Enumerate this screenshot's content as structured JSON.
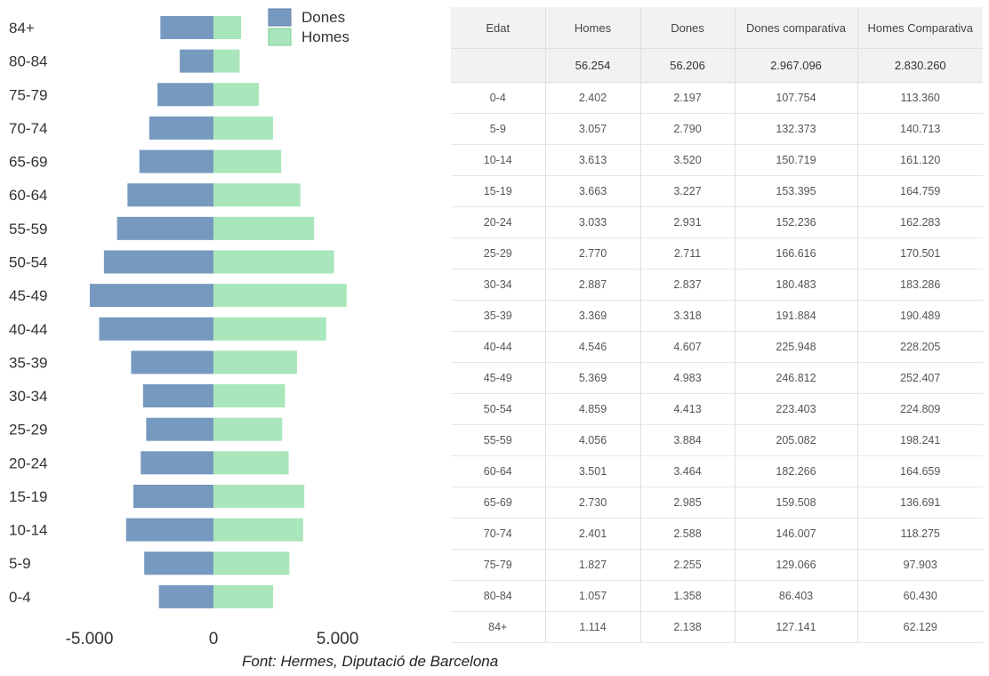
{
  "chart_data": {
    "type": "bar",
    "orientation": "horizontal",
    "categories": [
      "84+",
      "80-84",
      "75-79",
      "70-74",
      "65-69",
      "60-64",
      "55-59",
      "50-54",
      "45-49",
      "40-44",
      "35-39",
      "30-34",
      "25-29",
      "20-24",
      "15-19",
      "10-14",
      "5-9",
      "0-4"
    ],
    "series": [
      {
        "name": "Dones",
        "color": "#7699c0",
        "values": [
          -2138,
          -1358,
          -2255,
          -2588,
          -2985,
          -3464,
          -3884,
          -4413,
          -4983,
          -4607,
          -3318,
          -2837,
          -2711,
          -2931,
          -3227,
          -3520,
          -2790,
          -2197
        ]
      },
      {
        "name": "Homes",
        "color": "#a9e6bb",
        "values": [
          1114,
          1057,
          1827,
          2401,
          2730,
          3501,
          4056,
          4859,
          5369,
          4546,
          3369,
          2887,
          2770,
          3033,
          3663,
          3613,
          3057,
          2402
        ]
      }
    ],
    "xticks": [
      -5000,
      0,
      5000
    ],
    "xtick_labels": [
      "-5.000",
      "0",
      "5.000"
    ],
    "xlim": [
      -8500,
      9200
    ],
    "legend_position": "top-right",
    "grid": false
  },
  "table": {
    "headers": [
      "Edat",
      "Homes",
      "Dones",
      "Dones comparativa",
      "Homes Comparativa"
    ],
    "totals": [
      "",
      "56.254",
      "56.206",
      "2.967.096",
      "2.830.260"
    ],
    "rows": [
      [
        "0-4",
        "2.402",
        "2.197",
        "107.754",
        "113.360"
      ],
      [
        "5-9",
        "3.057",
        "2.790",
        "132.373",
        "140.713"
      ],
      [
        "10-14",
        "3.613",
        "3.520",
        "150.719",
        "161.120"
      ],
      [
        "15-19",
        "3.663",
        "3.227",
        "153.395",
        "164.759"
      ],
      [
        "20-24",
        "3.033",
        "2.931",
        "152.236",
        "162.283"
      ],
      [
        "25-29",
        "2.770",
        "2.711",
        "166.616",
        "170.501"
      ],
      [
        "30-34",
        "2.887",
        "2.837",
        "180.483",
        "183.286"
      ],
      [
        "35-39",
        "3.369",
        "3.318",
        "191.884",
        "190.489"
      ],
      [
        "40-44",
        "4.546",
        "4.607",
        "225.948",
        "228.205"
      ],
      [
        "45-49",
        "5.369",
        "4.983",
        "246.812",
        "252.407"
      ],
      [
        "50-54",
        "4.859",
        "4.413",
        "223.403",
        "224.809"
      ],
      [
        "55-59",
        "4.056",
        "3.884",
        "205.082",
        "198.241"
      ],
      [
        "60-64",
        "3.501",
        "3.464",
        "182.266",
        "164.659"
      ],
      [
        "65-69",
        "2.730",
        "2.985",
        "159.508",
        "136.691"
      ],
      [
        "70-74",
        "2.401",
        "2.588",
        "146.007",
        "118.275"
      ],
      [
        "75-79",
        "1.827",
        "2.255",
        "129.066",
        "97.903"
      ],
      [
        "80-84",
        "1.057",
        "1.358",
        "86.403",
        "60.430"
      ],
      [
        "84+",
        "1.114",
        "2.138",
        "127.141",
        "62.129"
      ]
    ]
  },
  "source": "Font: Hermes, Diputació de Barcelona"
}
